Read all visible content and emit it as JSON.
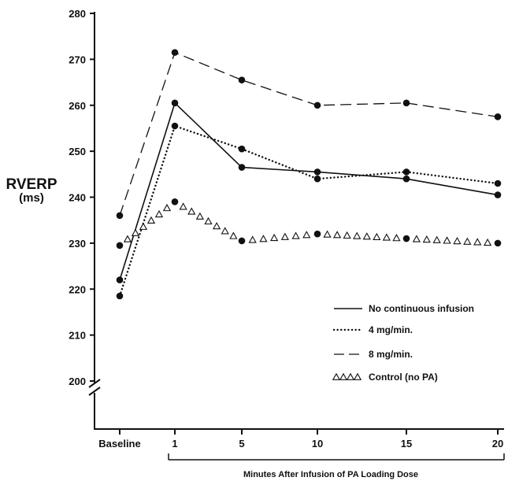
{
  "chart_data": {
    "type": "line",
    "ylabel": "RVERP",
    "yunit": "(ms)",
    "xlabel": "Minutes After Infusion of PA Loading Dose",
    "categories": [
      "Baseline",
      "1",
      "5",
      "10",
      "15",
      "20"
    ],
    "yticks": [
      200,
      210,
      220,
      230,
      240,
      250,
      260,
      270,
      280
    ],
    "ylim": [
      200,
      280
    ],
    "axis_break": true,
    "grid": false,
    "legend_position": "lower-right",
    "series": [
      {
        "name": "No continuous infusion",
        "style": "solid",
        "x": [
          "Baseline",
          "1",
          "5",
          "10",
          "15",
          "20"
        ],
        "values": [
          222,
          260.5,
          246.5,
          245.5,
          244,
          240.5
        ]
      },
      {
        "name": "4 mg/min.",
        "style": "dotted",
        "x": [
          "Baseline",
          "1",
          "5",
          "10",
          "15",
          "20"
        ],
        "values": [
          218.5,
          255.5,
          250.5,
          244,
          245.5,
          243
        ]
      },
      {
        "name": "8 mg/min.",
        "style": "dashed",
        "x": [
          "Baseline",
          "1",
          "5",
          "10",
          "15",
          "20"
        ],
        "values": [
          236,
          271.5,
          265.5,
          260,
          260.5,
          257.5
        ]
      },
      {
        "name": "Control (no PA)",
        "style": "triangles",
        "x": [
          "Baseline",
          "1",
          "5",
          "10",
          "15",
          "20"
        ],
        "values": [
          229.5,
          239,
          230.5,
          232,
          231,
          230
        ]
      }
    ]
  }
}
